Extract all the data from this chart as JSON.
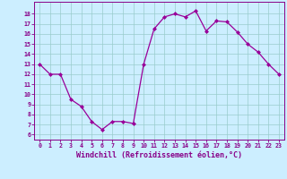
{
  "x": [
    0,
    1,
    2,
    3,
    4,
    5,
    6,
    7,
    8,
    9,
    10,
    11,
    12,
    13,
    14,
    15,
    16,
    17,
    18,
    19,
    20,
    21,
    22,
    23
  ],
  "y": [
    13,
    12,
    12,
    9.5,
    8.8,
    7.3,
    6.5,
    7.3,
    7.3,
    7.1,
    13.0,
    16.5,
    17.7,
    18.0,
    17.7,
    18.3,
    16.3,
    17.3,
    17.2,
    16.2,
    15.0,
    14.2,
    13.0,
    12.0
  ],
  "line_color": "#990099",
  "marker": "D",
  "marker_size": 2.0,
  "linewidth": 0.9,
  "bg_color": "#cceeff",
  "grid_color": "#99cccc",
  "xlabel": "Windchill (Refroidissement éolien,°C)",
  "xlabel_fontsize": 6.0,
  "tick_color": "#880088",
  "xtick_labels": [
    "0",
    "1",
    "2",
    "3",
    "4",
    "5",
    "6",
    "7",
    "8",
    "9",
    "10",
    "11",
    "12",
    "13",
    "14",
    "15",
    "16",
    "17",
    "18",
    "19",
    "20",
    "21",
    "22",
    "23"
  ],
  "ytick_min": 6,
  "ytick_max": 18,
  "ytick_step": 1,
  "ylim": [
    5.5,
    19.2
  ],
  "xlim": [
    -0.5,
    23.5
  ]
}
